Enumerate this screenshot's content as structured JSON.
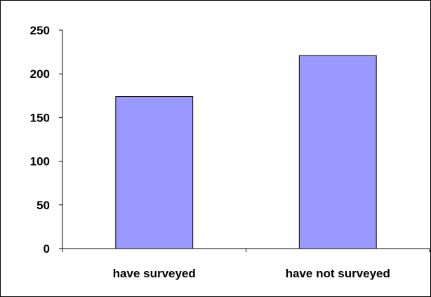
{
  "chart_data": {
    "type": "bar",
    "title": "",
    "xlabel": "",
    "ylabel": "",
    "categories": [
      "have surveyed",
      "have not surveyed"
    ],
    "values": [
      174,
      221
    ],
    "ylim": [
      0,
      250
    ],
    "yticks": [
      0,
      50,
      100,
      150,
      200,
      250
    ],
    "ytick_labels": [
      "0",
      "50",
      "100",
      "150",
      "200",
      "250"
    ],
    "grid": false,
    "legend": "none",
    "bar_color": "#9999FF",
    "bar_edge_color": "#000000"
  }
}
